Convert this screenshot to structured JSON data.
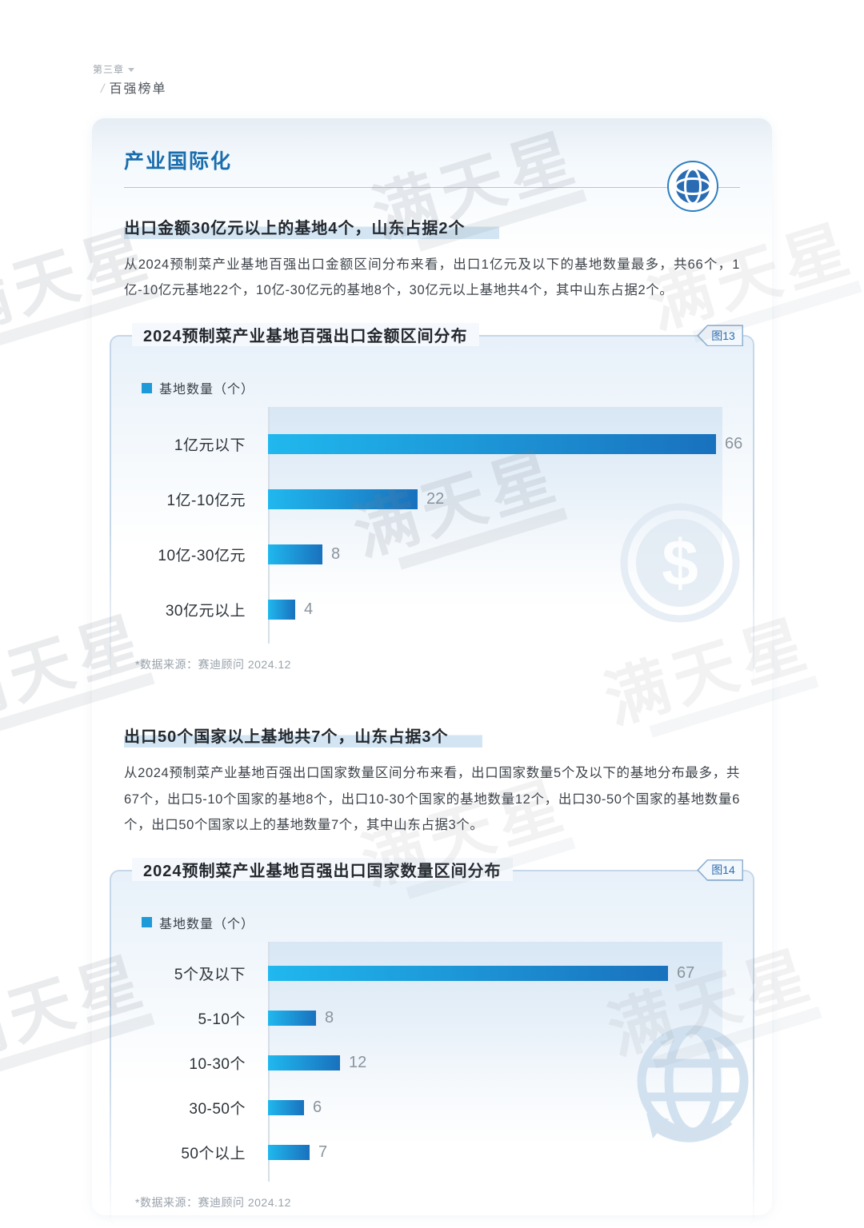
{
  "page": {
    "chapter": "第三章",
    "slash": "/",
    "breadcrumb": "百强榜单"
  },
  "card": {
    "title": "产业国际化",
    "section1": {
      "heading": "出口金额30亿元以上的基地4个，山东占据2个",
      "body": "从2024预制菜产业基地百强出口金额区间分布来看，出口1亿元及以下的基地数量最多，共66个，1亿-10亿元基地22个，10亿-30亿元的基地8个，30亿元以上基地共4个，其中山东占据2个。"
    },
    "section2": {
      "heading": "出口50个国家以上基地共7个，山东占据3个",
      "body": "从2024预制菜产业基地百强出口国家数量区间分布来看，出口国家数量5个及以下的基地分布最多，共67个，出口5-10个国家的基地8个，出口10-30个国家的基地数量12个，出口30-50个国家的基地数量6个，出口50个国家以上的基地数量7个，其中山东占据3个。"
    }
  },
  "watermark_text": "满天星",
  "chart_data": [
    {
      "type": "bar",
      "orientation": "horizontal",
      "title": "2024预制菜产业基地百强出口金额区间分布",
      "figure_label": "图13",
      "legend": "基地数量（个）",
      "categories": [
        "1亿元以下",
        "1亿-10亿元",
        "10亿-30亿元",
        "30亿元以上"
      ],
      "values": [
        66,
        22,
        8,
        4
      ],
      "xlim": [
        0,
        66
      ],
      "grid": false,
      "legend_position": "top-left",
      "bar_gradient": [
        "#20b8ee",
        "#1971bd"
      ],
      "source": "*数据来源：赛迪顾问 2024.12"
    },
    {
      "type": "bar",
      "orientation": "horizontal",
      "title": "2024预制菜产业基地百强出口国家数量区间分布",
      "figure_label": "图14",
      "legend": "基地数量（个）",
      "categories": [
        "5个及以下",
        "5-10个",
        "10-30个",
        "30-50个",
        "50个以上"
      ],
      "values": [
        67,
        8,
        12,
        6,
        7
      ],
      "xlim": [
        0,
        67
      ],
      "grid": false,
      "legend_position": "top-left",
      "bar_gradient": [
        "#20b8ee",
        "#1971bd"
      ],
      "source": "*数据来源：赛迪顾问 2024.12"
    }
  ]
}
